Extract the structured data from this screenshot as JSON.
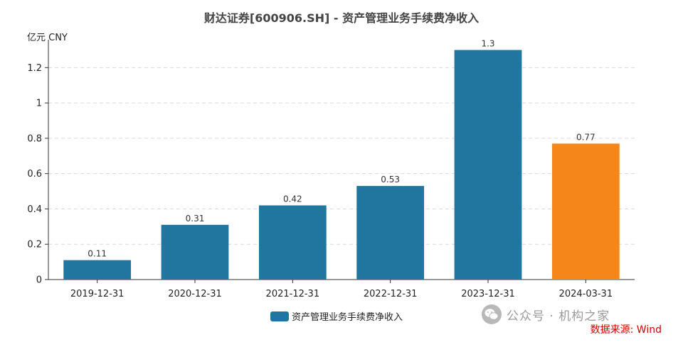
{
  "chart_data": {
    "type": "bar",
    "title": "财达证券[600906.SH] - 资产管理业务手续费净收入",
    "unit": "亿元  CNY",
    "categories": [
      "2019-12-31",
      "2020-12-31",
      "2021-12-31",
      "2022-12-31",
      "2023-12-31",
      "2024-03-31"
    ],
    "values": [
      0.11,
      0.31,
      0.42,
      0.53,
      1.3,
      0.77
    ],
    "data_labels": [
      "0.11",
      "0.31",
      "0.42",
      "0.53",
      "1.3",
      "0.77"
    ],
    "ylim": [
      0,
      1.35
    ],
    "yticks": [
      0,
      0.2,
      0.4,
      0.6,
      0.8,
      1,
      1.2
    ],
    "ytick_labels": [
      "0",
      "0.2",
      "0.4",
      "0.6",
      "0.8",
      "1",
      "1.2"
    ],
    "grid": true,
    "series": [
      {
        "name": "资产管理业务手续费净收入",
        "values": [
          0.11,
          0.31,
          0.42,
          0.53,
          1.3,
          0.77
        ]
      }
    ],
    "colors": [
      "#21769f",
      "#21769f",
      "#21769f",
      "#21769f",
      "#21769f",
      "#f5871a"
    ],
    "legend_placement": "bottom"
  },
  "watermark": "公众号 · 机构之家",
  "source": "数据来源: Wind"
}
